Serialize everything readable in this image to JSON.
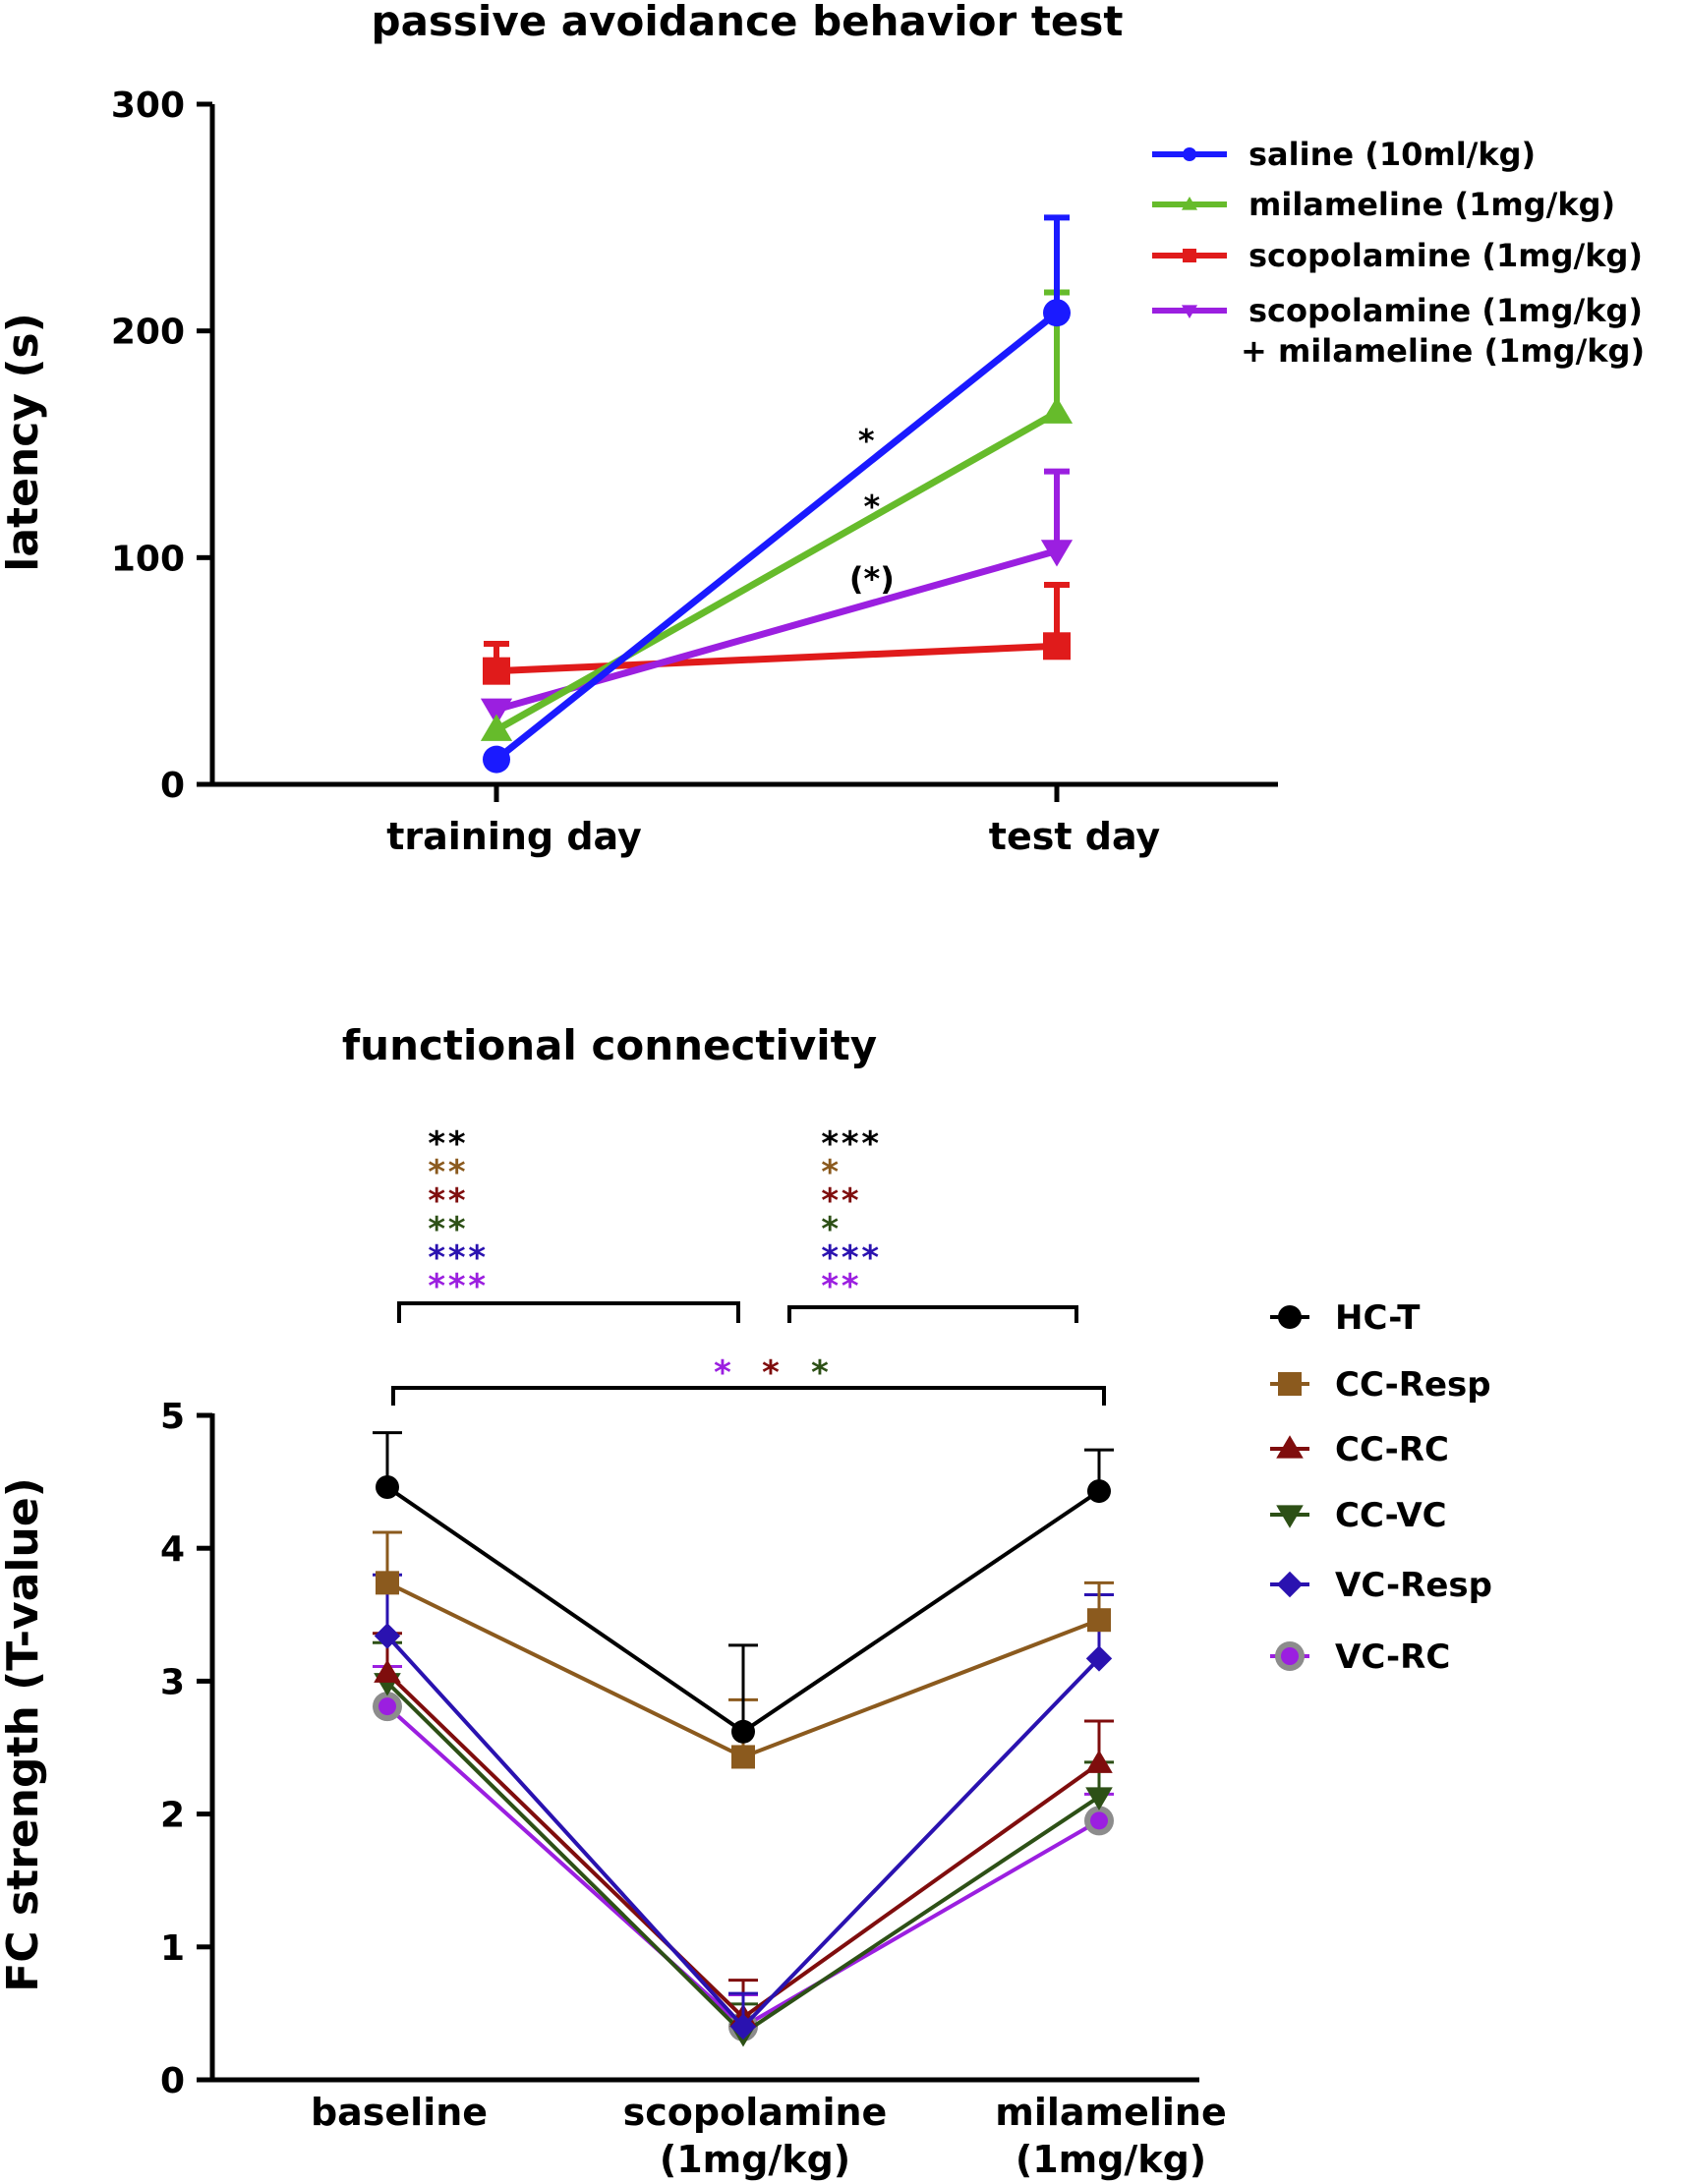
{
  "chart_data": [
    {
      "type": "line",
      "title": "passive avoidance behavior test",
      "xlabel": "",
      "ylabel": "latency (s)",
      "ylim": [
        0,
        300
      ],
      "yticks": [
        "0",
        "100",
        "200",
        "300"
      ],
      "categories": [
        "training day",
        "test day"
      ],
      "legend_position": "top-right",
      "series": [
        {
          "name": "saline (10ml/kg)",
          "color": "#1a1aff",
          "marker": "circle",
          "values": [
            11,
            208
          ],
          "errors": [
            0,
            42
          ]
        },
        {
          "name": "milameline (1mg/kg)",
          "color": "#66bb2b",
          "marker": "triangle-up",
          "values": [
            24,
            164
          ],
          "errors": [
            0,
            53
          ]
        },
        {
          "name": "scopolamine (1mg/kg)",
          "color": "#e01b1b",
          "marker": "square",
          "values": [
            50,
            61
          ],
          "errors": [
            12,
            27
          ]
        },
        {
          "name": "scopolamine (1mg/kg)",
          "name2": "+ milameline (1mg/kg)",
          "color": "#9b1fe0",
          "marker": "triangle-down",
          "values": [
            33,
            103
          ],
          "errors": [
            0,
            35
          ]
        }
      ],
      "annotations": [
        {
          "text": "*",
          "x": 0.66,
          "y": 152
        },
        {
          "text": "*",
          "x": 0.67,
          "y": 123
        },
        {
          "text": "(*)",
          "x": 0.67,
          "y": 91
        }
      ]
    },
    {
      "type": "line",
      "title": "functional connectivity",
      "xlabel": "",
      "ylabel": "FC strength (T-value)",
      "ylim": [
        0,
        5
      ],
      "yticks": [
        "0",
        "1",
        "2",
        "3",
        "4",
        "5"
      ],
      "categories": [
        "baseline",
        "scopolamine",
        "milameline"
      ],
      "categories_line2": [
        "",
        "(1mg/kg)",
        "(1mg/kg)"
      ],
      "legend_position": "right",
      "series": [
        {
          "name": "HC-T",
          "color": "#000000",
          "marker": "circle",
          "values": [
            4.46,
            2.62,
            4.43
          ],
          "errors": [
            0.41,
            0.65,
            0.31
          ]
        },
        {
          "name": "CC-Resp",
          "color": "#8b5a1e",
          "marker": "square",
          "values": [
            3.74,
            2.43,
            3.46
          ],
          "errors": [
            0.38,
            0.43,
            0.28
          ]
        },
        {
          "name": "CC-RC",
          "color": "#7f0d0d",
          "marker": "triangle-up",
          "values": [
            3.06,
            0.47,
            2.38
          ],
          "errors": [
            0.3,
            0.28,
            0.32
          ]
        },
        {
          "name": "CC-VC",
          "color": "#2d5016",
          "marker": "triangle-down",
          "values": [
            2.99,
            0.35,
            2.13
          ],
          "errors": [
            0.3,
            0.22,
            0.26
          ]
        },
        {
          "name": "VC-Resp",
          "color": "#2a12b0",
          "marker": "diamond",
          "values": [
            3.34,
            0.4,
            3.17
          ],
          "errors": [
            0.46,
            0.25,
            0.48
          ]
        },
        {
          "name": "VC-RC",
          "color": "#9b1fe0",
          "marker": "circle-gray",
          "values": [
            2.81,
            0.4,
            1.95
          ],
          "errors": [
            0.3,
            0.24,
            0.2
          ]
        }
      ],
      "significance": {
        "baseline_vs_scopolamine": [
          {
            "text": "**",
            "color": "#000000"
          },
          {
            "text": "**",
            "color": "#8b5a1e"
          },
          {
            "text": "**",
            "color": "#7f0d0d"
          },
          {
            "text": "**",
            "color": "#2d5016"
          },
          {
            "text": "***",
            "color": "#2a12b0"
          },
          {
            "text": "***",
            "color": "#9b1fe0"
          }
        ],
        "scopolamine_vs_milameline": [
          {
            "text": "***",
            "color": "#000000"
          },
          {
            "text": "*",
            "color": "#8b5a1e"
          },
          {
            "text": "**",
            "color": "#7f0d0d"
          },
          {
            "text": "*",
            "color": "#2d5016"
          },
          {
            "text": "***",
            "color": "#2a12b0"
          },
          {
            "text": "**",
            "color": "#9b1fe0"
          }
        ],
        "baseline_vs_milameline": [
          {
            "text": "*",
            "color": "#9b1fe0"
          },
          {
            "text": "*",
            "color": "#7f0d0d"
          },
          {
            "text": "*",
            "color": "#2d5016"
          }
        ]
      }
    }
  ]
}
